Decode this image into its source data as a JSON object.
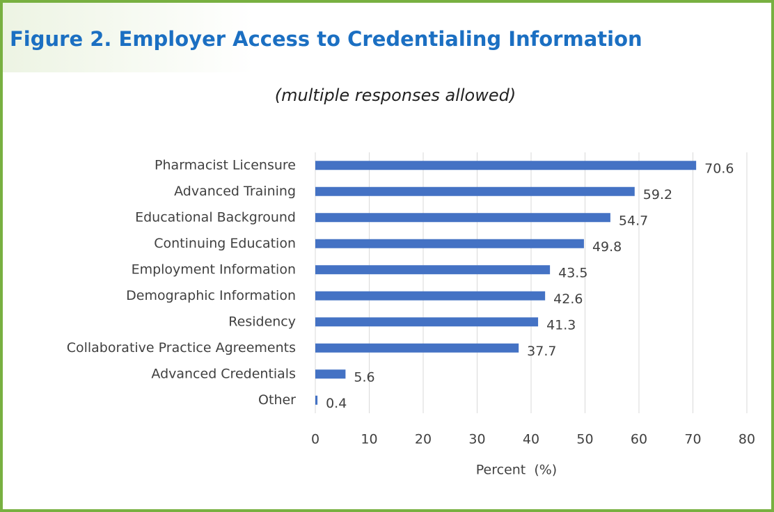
{
  "chart_data": {
    "type": "bar",
    "orientation": "horizontal",
    "title": "Figure 2. Employer Access to Credentialing Information",
    "subtitle": "(multiple responses allowed)",
    "x_label": "Percent  (%)",
    "categories": [
      "Pharmacist Licensure",
      "Advanced Training",
      "Educational Background",
      "Continuing Education",
      "Employment Information",
      "Demographic Information",
      "Residency",
      "Collaborative Practice Agreements",
      "Advanced Credentials",
      "Other"
    ],
    "values": [
      70.6,
      59.2,
      54.7,
      49.8,
      43.5,
      42.6,
      41.3,
      37.7,
      5.6,
      0.4
    ],
    "color": "#4472c4",
    "xlim": [
      0,
      80
    ],
    "xticks": [
      0,
      10,
      20,
      30,
      40,
      50,
      60,
      70,
      80
    ],
    "grid": true
  }
}
